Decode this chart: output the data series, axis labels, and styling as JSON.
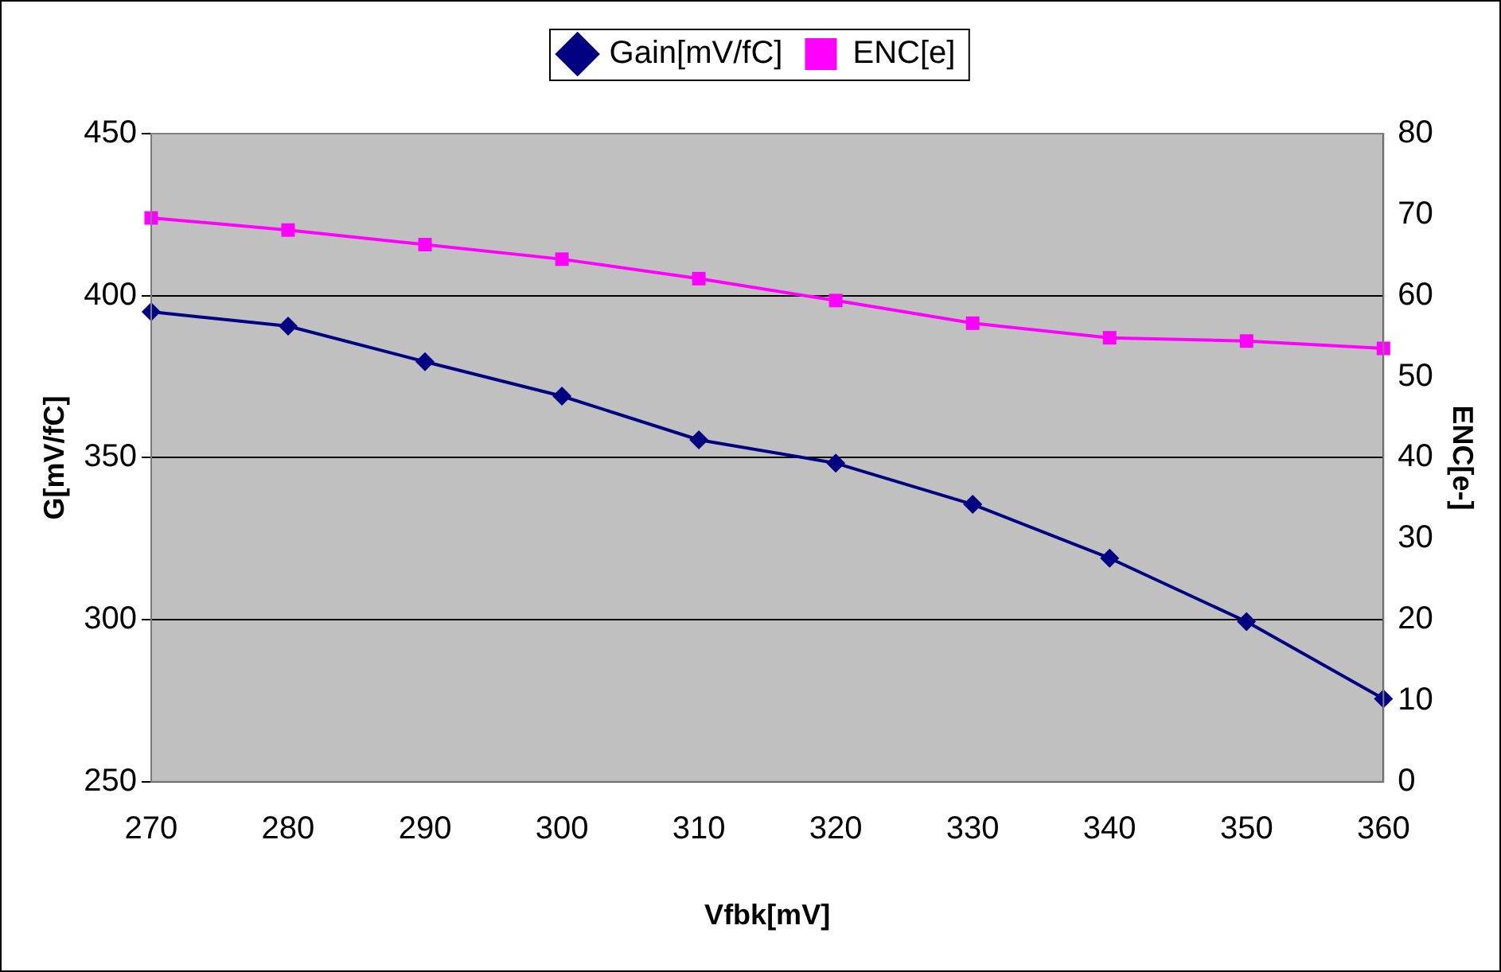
{
  "chart_data": {
    "type": "line",
    "xlabel": "Vfbk[mV]",
    "ylabel": "G[mV/fC]",
    "y2label": "ENC[e-]",
    "categories": [
      "270",
      "280",
      "290",
      "300",
      "310",
      "320",
      "330",
      "340",
      "350",
      "360"
    ],
    "series": [
      {
        "name": "Gain[mV/fC]",
        "color": "#000080",
        "marker": "diamond",
        "values": [
          395,
          390.6,
          379.6,
          369,
          355.5,
          348.3,
          335.6,
          319,
          299.4,
          275.6
        ]
      },
      {
        "name": "ENC[e]",
        "color": "#ff00ff",
        "marker": "square",
        "axis": "y2",
        "values": [
          69.6,
          68.1,
          66.3,
          64.5,
          62.1,
          59.4,
          56.6,
          54.8,
          54.4,
          53.5
        ]
      }
    ],
    "ylim": [
      250,
      450
    ],
    "yticks": [
      250,
      300,
      350,
      400,
      450
    ],
    "y2lim": [
      0,
      80
    ],
    "y2ticks": [
      0,
      10,
      20,
      30,
      40,
      50,
      60,
      70,
      80
    ],
    "grid": "y",
    "legend": "top",
    "line_style": "solid"
  }
}
